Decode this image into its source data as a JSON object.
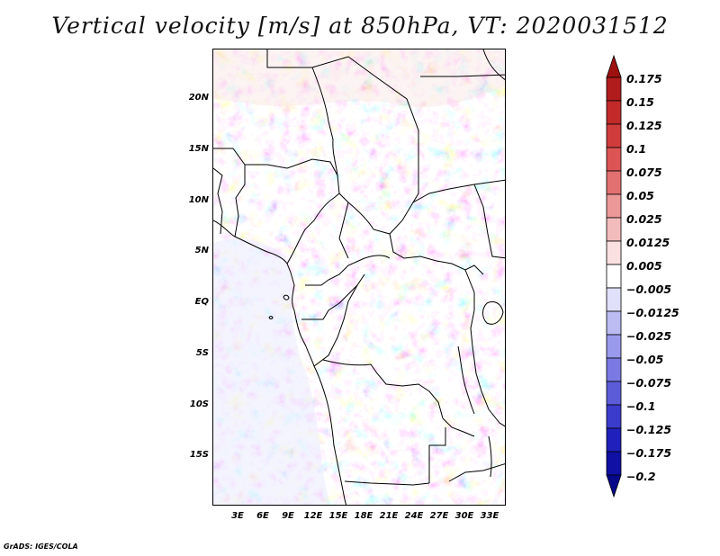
{
  "title": "Vertical velocity [m/s] at 850hPa, VT: 2020031512",
  "variable": "Vertical velocity",
  "units": "m/s",
  "level": "850hPa",
  "valid_time": "2020031512",
  "map": {
    "region": "Central Africa",
    "lat_labels": [
      "20N",
      "15N",
      "10N",
      "5N",
      "EQ",
      "5S",
      "10S",
      "15S"
    ],
    "lon_labels": [
      "3E",
      "6E",
      "9E",
      "12E",
      "15E",
      "18E",
      "21E",
      "24E",
      "27E",
      "30E",
      "33E"
    ],
    "lat_range": [
      -20,
      25
    ],
    "lon_range": [
      0,
      34.5
    ]
  },
  "colorbar": {
    "labels": [
      "0.175",
      "0.15",
      "0.125",
      "0.1",
      "0.075",
      "0.05",
      "0.025",
      "0.0125",
      "0.005",
      "−0.005",
      "−0.0125",
      "−0.025",
      "−0.05",
      "−0.075",
      "−0.1",
      "−0.125",
      "−0.175",
      "−0.2"
    ],
    "colors": [
      "#9e1010",
      "#b01c1c",
      "#c22a2a",
      "#d03c3c",
      "#dc5454",
      "#e27070",
      "#ec9898",
      "#f3bcbc",
      "#fae0e0",
      "#ffffff",
      "#e0e0fb",
      "#bcbcf3",
      "#9a9aec",
      "#7a7ae2",
      "#5c5cd8",
      "#3c3ccc",
      "#2020bc",
      "#1010a4",
      "#07078a"
    ]
  },
  "credit": "GrADS: IGES/COLA"
}
